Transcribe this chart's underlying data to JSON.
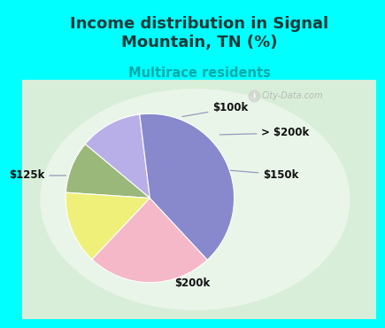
{
  "title": "Income distribution in Signal\nMountain, TN (%)",
  "subtitle": "Multirace residents",
  "title_color": "#1a3a3a",
  "subtitle_color": "#00aaaa",
  "bg_top": "#00ffff",
  "chart_bg": "#d8eed8",
  "labels": [
    "$100k",
    "> $200k",
    "$150k",
    "$200k",
    "$125k"
  ],
  "sizes": [
    12,
    10,
    14,
    24,
    40
  ],
  "colors": [
    "#b8aee8",
    "#9ab87a",
    "#eef07a",
    "#f5b8c8",
    "#8888cc"
  ],
  "startangle": 97,
  "watermark": "City-Data.com",
  "label_fontsize": 8.5,
  "title_fontsize": 13,
  "subtitle_fontsize": 10.5
}
